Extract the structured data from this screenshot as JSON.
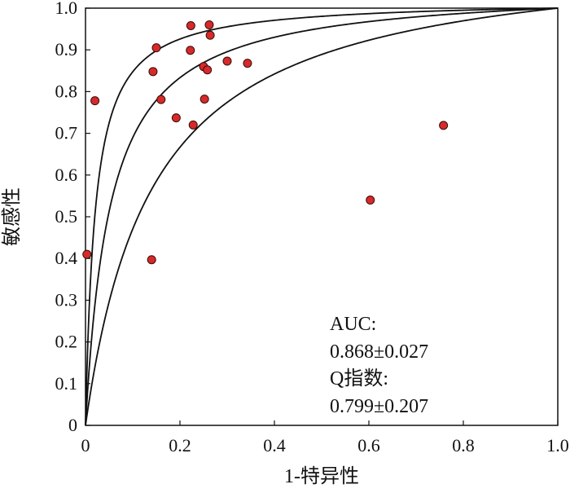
{
  "chart_data": {
    "type": "scatter",
    "title": "",
    "xlabel": "1-特异性",
    "ylabel": "敏感性",
    "xlim": [
      0,
      1.0
    ],
    "ylim": [
      0,
      1.0
    ],
    "x_ticks": [
      "0",
      "0.2",
      "0.4",
      "0.6",
      "0.8",
      "1.0"
    ],
    "y_ticks": [
      "0",
      "0.1",
      "0.2",
      "0.3",
      "0.4",
      "0.5",
      "0.6",
      "0.7",
      "0.8",
      "0.9",
      "1.0"
    ],
    "grid": false,
    "point_color": "#d62a2a",
    "points": [
      {
        "x": 0.003,
        "y": 0.41
      },
      {
        "x": 0.02,
        "y": 0.778
      },
      {
        "x": 0.14,
        "y": 0.397
      },
      {
        "x": 0.143,
        "y": 0.848
      },
      {
        "x": 0.15,
        "y": 0.905
      },
      {
        "x": 0.16,
        "y": 0.781
      },
      {
        "x": 0.192,
        "y": 0.737
      },
      {
        "x": 0.222,
        "y": 0.899
      },
      {
        "x": 0.223,
        "y": 0.958
      },
      {
        "x": 0.228,
        "y": 0.72
      },
      {
        "x": 0.25,
        "y": 0.86
      },
      {
        "x": 0.252,
        "y": 0.782
      },
      {
        "x": 0.258,
        "y": 0.852
      },
      {
        "x": 0.262,
        "y": 0.96
      },
      {
        "x": 0.264,
        "y": 0.935
      },
      {
        "x": 0.3,
        "y": 0.873
      },
      {
        "x": 0.343,
        "y": 0.868
      },
      {
        "x": 0.603,
        "y": 0.54
      },
      {
        "x": 0.758,
        "y": 0.719
      }
    ],
    "curves": [
      {
        "diagnostic_odds_ratio": 50
      },
      {
        "diagnostic_odds_ratio": 20
      },
      {
        "diagnostic_odds_ratio": 8
      }
    ],
    "annotations": {
      "auc_label": "AUC:",
      "auc_value": "0.868±0.027",
      "q_label": "Q指数:",
      "q_value": "0.799±0.207"
    }
  }
}
